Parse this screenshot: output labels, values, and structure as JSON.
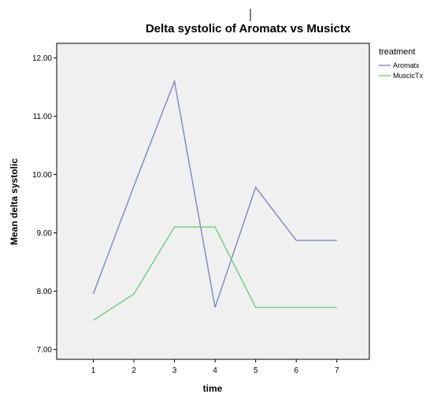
{
  "chart_data": {
    "type": "line",
    "title": "Delta systolic of Aromatx vs Musictx",
    "xlabel": "time",
    "ylabel": "Mean delta systolic",
    "x": [
      1,
      2,
      3,
      4,
      5,
      6,
      7
    ],
    "y_ticks": [
      "7.00",
      "8.00",
      "9.00",
      "10.00",
      "11.00",
      "12.00"
    ],
    "ylim": [
      6.83,
      12.25
    ],
    "xlim": [
      0.1,
      7.8
    ],
    "grid": false,
    "legend": {
      "title": "treatment",
      "placement": "right"
    },
    "series": [
      {
        "name": "Aromatx",
        "color": "#7b86c2",
        "values": [
          7.95,
          9.8,
          11.6,
          7.72,
          9.78,
          8.87,
          8.87
        ]
      },
      {
        "name": "MuscicTx",
        "color": "#6dcf7b",
        "values": [
          7.5,
          7.95,
          9.1,
          9.1,
          7.72,
          7.72,
          7.72
        ]
      }
    ],
    "colors": {
      "plot_background": "#f0f0f0",
      "axis": "#000000"
    }
  }
}
